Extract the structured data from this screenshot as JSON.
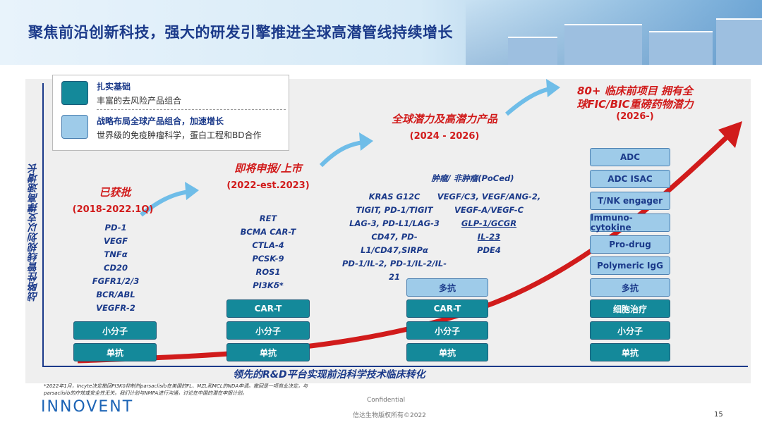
{
  "slide_title": "聚焦前沿创新科技，强大的研发引擎推进全球高潜管线持续增长",
  "y_axis_label": "战略性管线规划以支撑高速增长",
  "x_axis_label": "领先的R&D平台实现前沿科学技术临床转化",
  "legend": {
    "item1_title": "扎实基础",
    "item1_desc": "丰富的去风险产品组合",
    "item2_title": "战略布局全球产品组合，加速增长",
    "item2_desc": "世界级的免疫肿瘤科学，蛋白工程和BD合作"
  },
  "stage1": {
    "title": "已获批",
    "period": "(2018-2022.1Q)",
    "targets": [
      "PD-1",
      "VEGF",
      "TNFα",
      "CD20",
      "FGFR1/2/3",
      "BCR/ABL",
      "VEGFR-2"
    ],
    "boxes": [
      "小分子",
      "单抗"
    ]
  },
  "stage2": {
    "title": "即将申报/上市",
    "period": "(2022-est.2023)",
    "targets": [
      "RET",
      "BCMA CAR-T",
      "CTLA-4",
      "PCSK-9",
      "ROS1",
      "PI3Kδ*"
    ],
    "boxes": [
      "CAR-T",
      "小分子",
      "单抗"
    ]
  },
  "stage3": {
    "title": "全球潜力及高潜力产品",
    "period": "(2024 - 2026)",
    "subhead": "肿瘤/  非肿瘤(PoCed)",
    "left_targets": [
      "KRAS G12C",
      "TIGIT, PD-1/TIGIT",
      "LAG-3, PD-L1/LAG-3",
      "CD47, PD-L1/CD47,SIRPα",
      "PD-1/IL-2, PD-1/IL-2/IL-21"
    ],
    "right_targets": [
      "VEGF/C3, VEGF/ANG-2,",
      "VEGF-A/VEGF-C",
      "GLP-1/GCGR",
      "IL-23",
      "PDE4"
    ],
    "boxes": [
      "多抗",
      "CAR-T",
      "小分子",
      "单抗"
    ]
  },
  "stage4": {
    "title_line1": "80+ 临床前项目 拥有全",
    "title_line2": "球FIC/BIC重磅药物潜力",
    "period": "(2026-)",
    "boxes_light": [
      "ADC",
      "ADC ISAC",
      "T/NK engager",
      "Immuno-cytokine",
      "Pro-drug",
      "Polymeric IgG"
    ],
    "boxes_dark": [
      "多抗",
      "细胞治疗",
      "小分子",
      "单抗"
    ]
  },
  "footnote_line1": "*2022年1月，Incyte决定撤回PI3Kδ抑制剂parsaclisib在美国的FL、MZL和MCL的NDA申请。撤回是一项商业决定，与",
  "footnote_line2": "parsaclisib的疗效或安全性无关。我们计划与NMPA进行沟通，讨论在中国的潜在申报计划。",
  "logo_text": "INNOVENT",
  "confidential": "Confidential",
  "copyright": "信达生物版权所有©2022",
  "page_number": "15",
  "colors": {
    "title_blue": "#1b3a8a",
    "red": "#d11b1b",
    "teal": "#14899a",
    "light_blue": "#9ecbe9"
  }
}
